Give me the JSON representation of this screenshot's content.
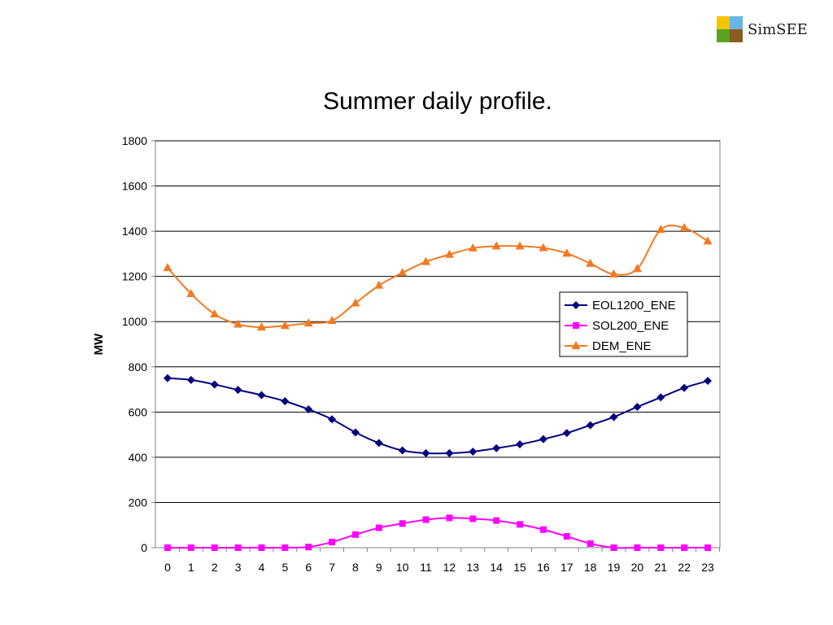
{
  "logo": {
    "text": "SimSEE",
    "colors": [
      "#f5c400",
      "#6ab4e8",
      "#5aa320",
      "#8b5a1e"
    ]
  },
  "slide_title": "Summer daily profile.",
  "chart_data": {
    "type": "line",
    "title": "",
    "xlabel": "",
    "ylabel": "MW",
    "x": [
      0,
      1,
      2,
      3,
      4,
      5,
      6,
      7,
      8,
      9,
      10,
      11,
      12,
      13,
      14,
      15,
      16,
      17,
      18,
      19,
      20,
      21,
      22,
      23
    ],
    "xlim": [
      0,
      23
    ],
    "ylim": [
      0,
      1800
    ],
    "yticks": [
      0,
      200,
      400,
      600,
      800,
      1000,
      1200,
      1400,
      1600,
      1800
    ],
    "grid": "horizontal",
    "legend_position": "right",
    "series": [
      {
        "name": "EOL1200_ENE",
        "color": "#000080",
        "marker": "diamond",
        "values": [
          750,
          742,
          722,
          698,
          675,
          648,
          612,
          568,
          510,
          463,
          430,
          418,
          418,
          425,
          440,
          457,
          480,
          507,
          542,
          578,
          623,
          665,
          707,
          738
        ]
      },
      {
        "name": "SOL200_ENE",
        "color": "#ff00ff",
        "marker": "square",
        "values": [
          0,
          0,
          0,
          0,
          0,
          0,
          3,
          25,
          58,
          88,
          107,
          124,
          132,
          128,
          120,
          103,
          80,
          50,
          18,
          0,
          0,
          0,
          0,
          0
        ]
      },
      {
        "name": "DEM_ENE",
        "color": "#f47920",
        "marker": "triangle",
        "values": [
          1238,
          1123,
          1033,
          988,
          975,
          982,
          993,
          1004,
          1082,
          1160,
          1216,
          1265,
          1297,
          1325,
          1334,
          1334,
          1326,
          1302,
          1257,
          1210,
          1234,
          1407,
          1415,
          1356
        ]
      }
    ]
  }
}
